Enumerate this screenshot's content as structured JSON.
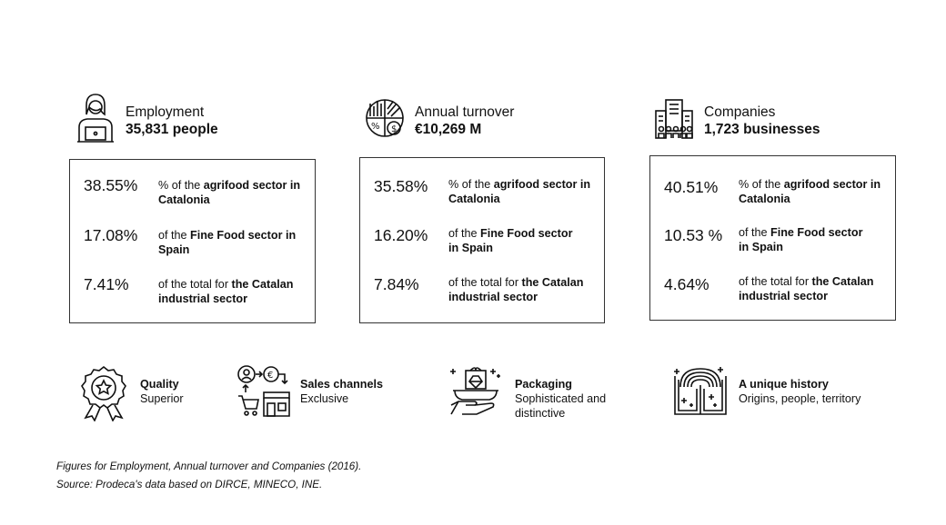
{
  "stats": [
    {
      "label": "Employment",
      "value": "35,831 people",
      "icon": "person-laptop-icon",
      "rows": [
        {
          "pct": "38.55%",
          "pre": "% of the ",
          "bold": "agrifood sector in",
          "line2": "Catalonia"
        },
        {
          "pct": "17.08%",
          "pre": "of the ",
          "bold": "Fine Food sector in",
          "line2": "Spain"
        },
        {
          "pct": "7.41%",
          "pre": "of the total for ",
          "bold": "the Catalan",
          "line2": "industrial sector"
        }
      ]
    },
    {
      "label": "Annual turnover",
      "value": "€10,269 M",
      "icon": "pie-chart-money-icon",
      "rows": [
        {
          "pct": "35.58%",
          "pre": "% of the ",
          "bold": "agrifood sector in",
          "line2": "Catalonia"
        },
        {
          "pct": "16.20%",
          "pre": "of the ",
          "bold": "Fine Food sector",
          "line2": "in Spain"
        },
        {
          "pct": "7.84%",
          "pre": "of the total for ",
          "bold": "the Catalan",
          "line2": "industrial sector"
        }
      ]
    },
    {
      "label": "Companies",
      "value": "1,723 businesses",
      "icon": "office-building-icon",
      "rows": [
        {
          "pct": "40.51%",
          "pre": "% of the ",
          "bold": "agrifood sector in",
          "line2": "Catalonia"
        },
        {
          "pct": "10.53 %",
          "pre": "of the ",
          "bold": "Fine Food sector",
          "line2": "in Spain"
        },
        {
          "pct": "4.64%",
          "pre": "of the total for ",
          "bold": "the Catalan",
          "line2": "industrial sector"
        }
      ]
    }
  ],
  "features": [
    {
      "title": "Quality",
      "sub": "Superior",
      "icon": "award-badge-icon"
    },
    {
      "title": "Sales channels",
      "sub": "Exclusive",
      "icon": "sales-channels-icon"
    },
    {
      "title": "Packaging",
      "sub": "Sophisticated and distinctive",
      "icon": "gift-hand-icon"
    },
    {
      "title": "A unique history",
      "sub": "Origins, people, territory",
      "icon": "open-book-icon"
    }
  ],
  "footnote": {
    "line1": "Figures for Employment, Annual turnover and Companies (2016).",
    "line2": "Source: Prodeca's data based on DIRCE, MINECO, INE."
  }
}
